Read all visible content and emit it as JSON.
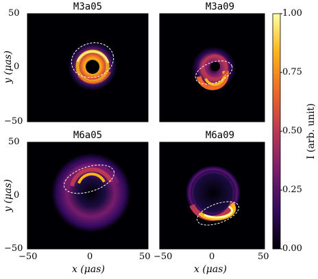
{
  "panels": [
    {
      "title": "M3a05"
    },
    {
      "title": "M3a09"
    },
    {
      "title": "M6a05"
    },
    {
      "title": "M6a09"
    }
  ],
  "axes": {
    "x_label": "x (μas)",
    "y_label": "y (μas)",
    "x_ticks": [
      "−50",
      "0",
      "50"
    ],
    "y_ticks": [
      "50",
      "0",
      "−50"
    ]
  },
  "colorbar": {
    "label": "I (arb. unit)",
    "ticks": [
      "1.00",
      "0.75",
      "0.50",
      "0.25",
      "0.00"
    ],
    "colors": [
      "#000004",
      "#320a5e",
      "#781c6d",
      "#bb3754",
      "#ed6925",
      "#fbb61a",
      "#fcffa4"
    ]
  }
}
